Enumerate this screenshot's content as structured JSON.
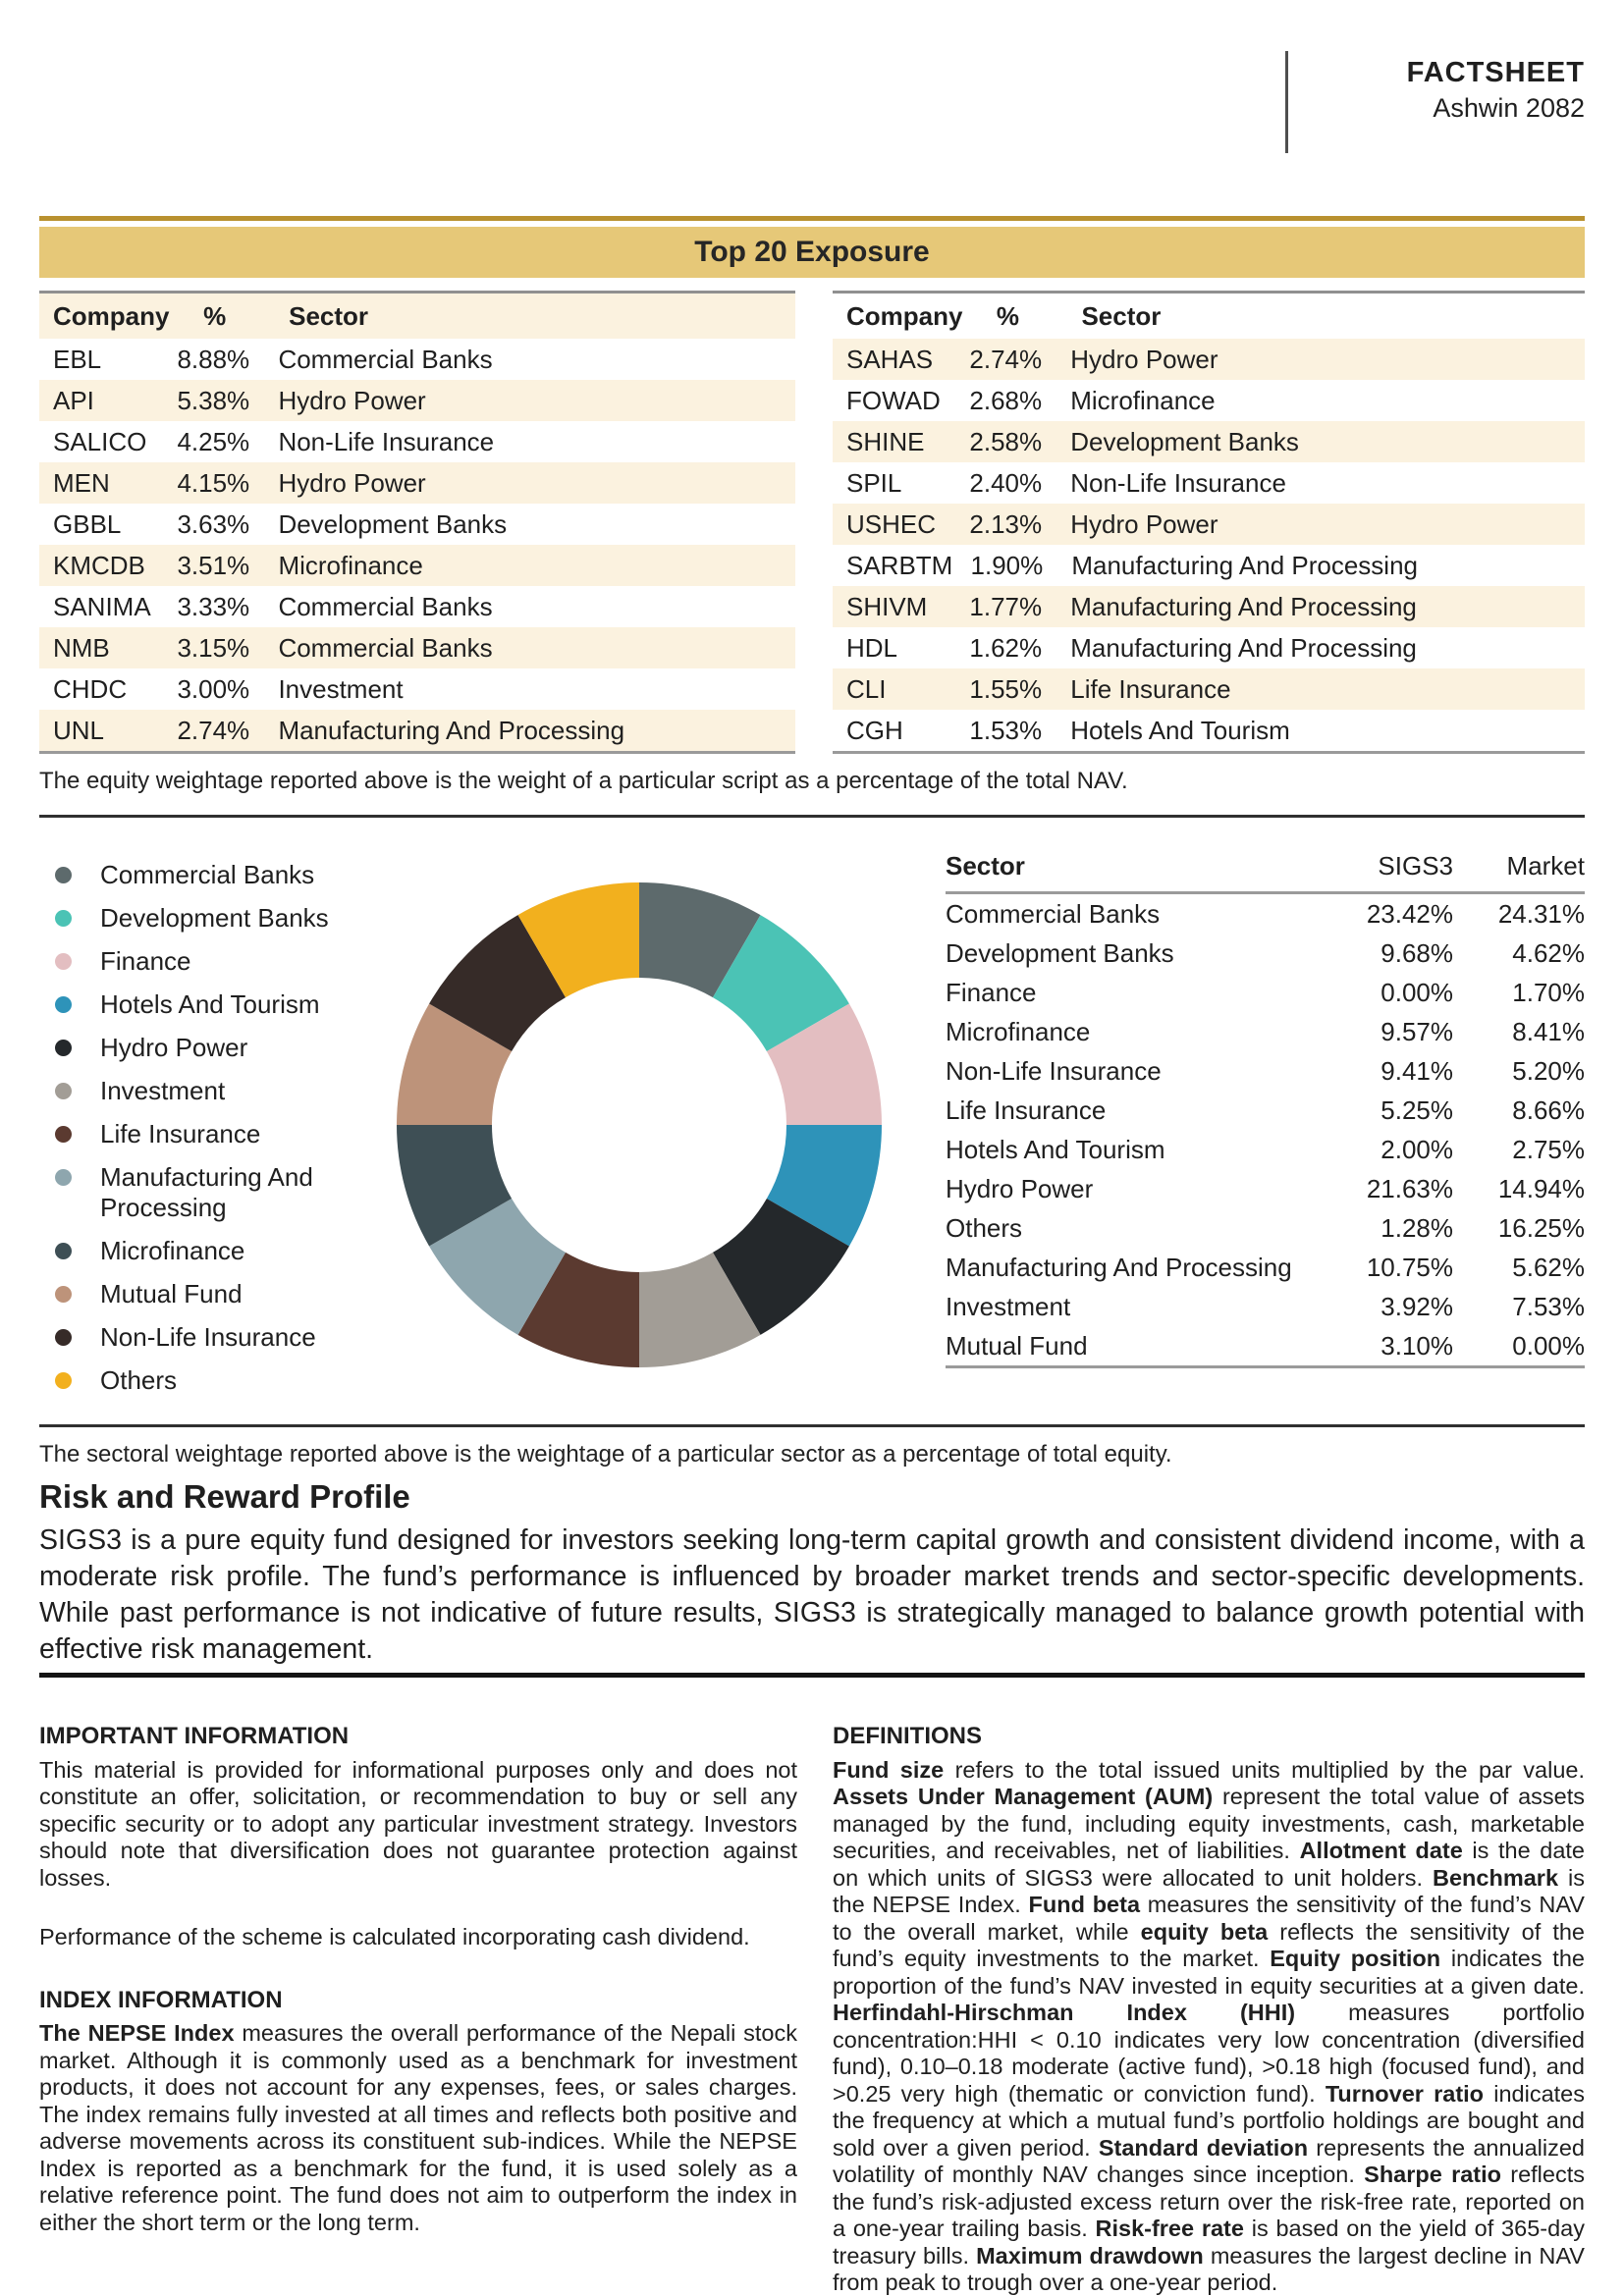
{
  "header": {
    "title": "FACTSHEET",
    "subtitle": "Ashwin 2082"
  },
  "top20": {
    "title": "Top 20 Exposure",
    "columns": [
      "Company",
      "%",
      "Sector"
    ],
    "left_table": {
      "header_shaded": true,
      "odd_rows_shaded": true,
      "rows": [
        [
          "EBL",
          "8.88%",
          "Commercial Banks"
        ],
        [
          "API",
          "5.38%",
          "Hydro Power"
        ],
        [
          "SALICO",
          "4.25%",
          "Non-Life Insurance"
        ],
        [
          "MEN",
          "4.15%",
          "Hydro Power"
        ],
        [
          "GBBL",
          "3.63%",
          "Development Banks"
        ],
        [
          "KMCDB",
          "3.51%",
          "Microfinance"
        ],
        [
          "SANIMA",
          "3.33%",
          "Commercial Banks"
        ],
        [
          "NMB",
          "3.15%",
          "Commercial Banks"
        ],
        [
          "CHDC",
          "3.00%",
          "Investment"
        ],
        [
          "UNL",
          "2.74%",
          "Manufacturing And Processing"
        ]
      ]
    },
    "right_table": {
      "header_shaded": false,
      "odd_rows_shaded": false,
      "rows": [
        [
          "SAHAS",
          "2.74%",
          "Hydro Power"
        ],
        [
          "FOWAD",
          "2.68%",
          "Microfinance"
        ],
        [
          "SHINE",
          "2.58%",
          "Development Banks"
        ],
        [
          "SPIL",
          "2.40%",
          "Non-Life Insurance"
        ],
        [
          "USHEC",
          "2.13%",
          "Hydro Power"
        ],
        [
          "SARBTM",
          "1.90%",
          "Manufacturing And Processing"
        ],
        [
          "SHIVM",
          "1.77%",
          "Manufacturing And Processing"
        ],
        [
          "HDL",
          "1.62%",
          "Manufacturing And Processing"
        ],
        [
          "CLI",
          "1.55%",
          "Life Insurance"
        ],
        [
          "CGH",
          "1.53%",
          "Hotels And Tourism"
        ]
      ]
    },
    "footnote": "The equity weightage reported above is the weight of a particular script as a percentage of the total NAV."
  },
  "chart_data": {
    "type": "pie",
    "subtype": "donut",
    "donut_order_clockwise_from_top": [
      "Commercial Banks",
      "Development Banks",
      "Finance",
      "Hotels And Tourism",
      "Hydro Power",
      "Investment",
      "Life Insurance",
      "Manufacturing And Processing",
      "Microfinance",
      "Mutual Fund",
      "Non-Life Insurance",
      "Others"
    ],
    "equal_display_segments": true,
    "legend": [
      {
        "label": "Commercial Banks",
        "color": "#5d6a6c"
      },
      {
        "label": "Development Banks",
        "color": "#4bc3b5"
      },
      {
        "label": "Finance",
        "color": "#e3bec1"
      },
      {
        "label": "Hotels And Tourism",
        "color": "#2e93b9"
      },
      {
        "label": "Hydro Power",
        "color": "#24282b"
      },
      {
        "label": "Investment",
        "color": "#a29d96"
      },
      {
        "label": "Life Insurance",
        "color": "#5b3a30"
      },
      {
        "label": "Manufacturing And Processing",
        "color": "#8ea6ae"
      },
      {
        "label": "Microfinance",
        "color": "#3e4f55"
      },
      {
        "label": "Mutual Fund",
        "color": "#bd937a"
      },
      {
        "label": "Non-Life Insurance",
        "color": "#362b28"
      },
      {
        "label": "Others",
        "color": "#f2b01e"
      }
    ],
    "categories": [
      "Commercial Banks",
      "Development Banks",
      "Finance",
      "Microfinance",
      "Non-Life Insurance",
      "Life Insurance",
      "Hotels And Tourism",
      "Hydro Power",
      "Others",
      "Manufacturing And Processing",
      "Investment",
      "Mutual Fund"
    ],
    "series": [
      {
        "name": "SIGS3",
        "values": [
          23.42,
          9.68,
          0.0,
          9.57,
          9.41,
          5.25,
          2.0,
          21.63,
          1.28,
          10.75,
          3.92,
          3.1
        ]
      },
      {
        "name": "Market",
        "values": [
          24.31,
          4.62,
          1.7,
          8.41,
          5.2,
          8.66,
          2.75,
          14.94,
          16.25,
          5.62,
          7.53,
          0.0
        ]
      }
    ],
    "sector_table": {
      "columns": [
        "Sector",
        "SIGS3",
        "Market"
      ],
      "rows": [
        [
          "Commercial Banks",
          "23.42%",
          "24.31%"
        ],
        [
          "Development Banks",
          "9.68%",
          "4.62%"
        ],
        [
          "Finance",
          "0.00%",
          "1.70%"
        ],
        [
          "Microfinance",
          "9.57%",
          "8.41%"
        ],
        [
          "Non-Life Insurance",
          "9.41%",
          "5.20%"
        ],
        [
          "Life Insurance",
          "5.25%",
          "8.66%"
        ],
        [
          "Hotels And Tourism",
          "2.00%",
          "2.75%"
        ],
        [
          "Hydro Power",
          "21.63%",
          "14.94%"
        ],
        [
          "Others",
          "1.28%",
          "16.25%"
        ],
        [
          "Manufacturing And Processing",
          "10.75%",
          "5.62%"
        ],
        [
          "Investment",
          "3.92%",
          "7.53%"
        ],
        [
          "Mutual Fund",
          "3.10%",
          "0.00%"
        ]
      ]
    },
    "footnote": "The sectoral weightage reported above is the weightage of a particular sector as a percentage of total equity."
  },
  "risk": {
    "heading": "Risk and Reward Profile",
    "body": "SIGS3 is a pure equity fund designed for investors seeking long-term capital growth and consistent dividend income, with a moderate risk profile. The fund’s performance is influenced by broader market trends and sector-specific developments. While past performance is not indicative of future results, SIGS3 is strategically managed to balance growth potential with effective risk management."
  },
  "info": {
    "important_heading": "IMPORTANT INFORMATION",
    "important_body": "This material is provided for informational purposes only and does not constitute an offer, solicitation, or recommendation to buy or sell any specific security or to adopt any particular investment strategy. Investors should note that diversification does not guarantee protection against losses.",
    "performance_note": "Performance of the scheme is calculated incorporating cash dividend.",
    "index_heading": "INDEX INFORMATION",
    "index_body": [
      {
        "b": "The NEPSE Index"
      },
      {
        "t": " measures the overall performance of the Nepali stock market. Although it is commonly used as a benchmark for investment products, it does not account for any expenses, fees, or sales charges. The index remains fully invested at all times and reflects both positive and adverse movements across its constituent sub-indices. While the NEPSE Index is reported as a benchmark for the fund, it is used solely as a relative reference point. The fund does not aim to outperform the index in either the short term or the long term."
      }
    ],
    "definitions_heading": "DEFINITIONS",
    "definitions_body": [
      {
        "b": "Fund size"
      },
      {
        "t": " refers to the total issued units multiplied by the par value. "
      },
      {
        "b": "Assets Under Management (AUM)"
      },
      {
        "t": " represent the total value of assets managed by the fund, including equity investments, cash, marketable securities, and receivables, net of liabilities. "
      },
      {
        "b": "Allotment date"
      },
      {
        "t": " is the date on which units of SIGS3 were allocated to unit holders. "
      },
      {
        "b": "Benchmark"
      },
      {
        "t": " is the NEPSE Index. "
      },
      {
        "b": "Fund beta"
      },
      {
        "t": " measures the sensitivity of the fund’s NAV to the overall market, while "
      },
      {
        "b": "equity beta"
      },
      {
        "t": " reflects the sensitivity of the fund’s equity investments to the market. "
      },
      {
        "b": "Equity position"
      },
      {
        "t": " indicates the proportion of the fund’s NAV invested in equity securities at a given date. "
      },
      {
        "b": "Herfindahl-Hirschman Index (HHI)"
      },
      {
        "t": " measures portfolio concentration:HHI < 0.10 indicates very low concentration (diversified fund), 0.10–0.18 moderate (active fund), >0.18 high (focused fund), and >0.25 very high (thematic or conviction fund). "
      },
      {
        "b": "Turnover ratio"
      },
      {
        "t": " indicates the frequency at which a mutual fund’s portfolio holdings are bought and sold over a given period. "
      },
      {
        "b": "Standard deviation"
      },
      {
        "t": " represents the annualized volatility of monthly NAV changes since inception. "
      },
      {
        "b": "Sharpe ratio"
      },
      {
        "t": " reflects the fund’s risk-adjusted excess return over the risk-free rate, reported on a one-year trailing basis. "
      },
      {
        "b": "Risk-free rate"
      },
      {
        "t": " is based on the yield of 365-day treasury bills. "
      },
      {
        "b": "Maximum drawdown"
      },
      {
        "t": " measures the largest decline in NAV from peak to trough over a one-year period."
      }
    ]
  }
}
